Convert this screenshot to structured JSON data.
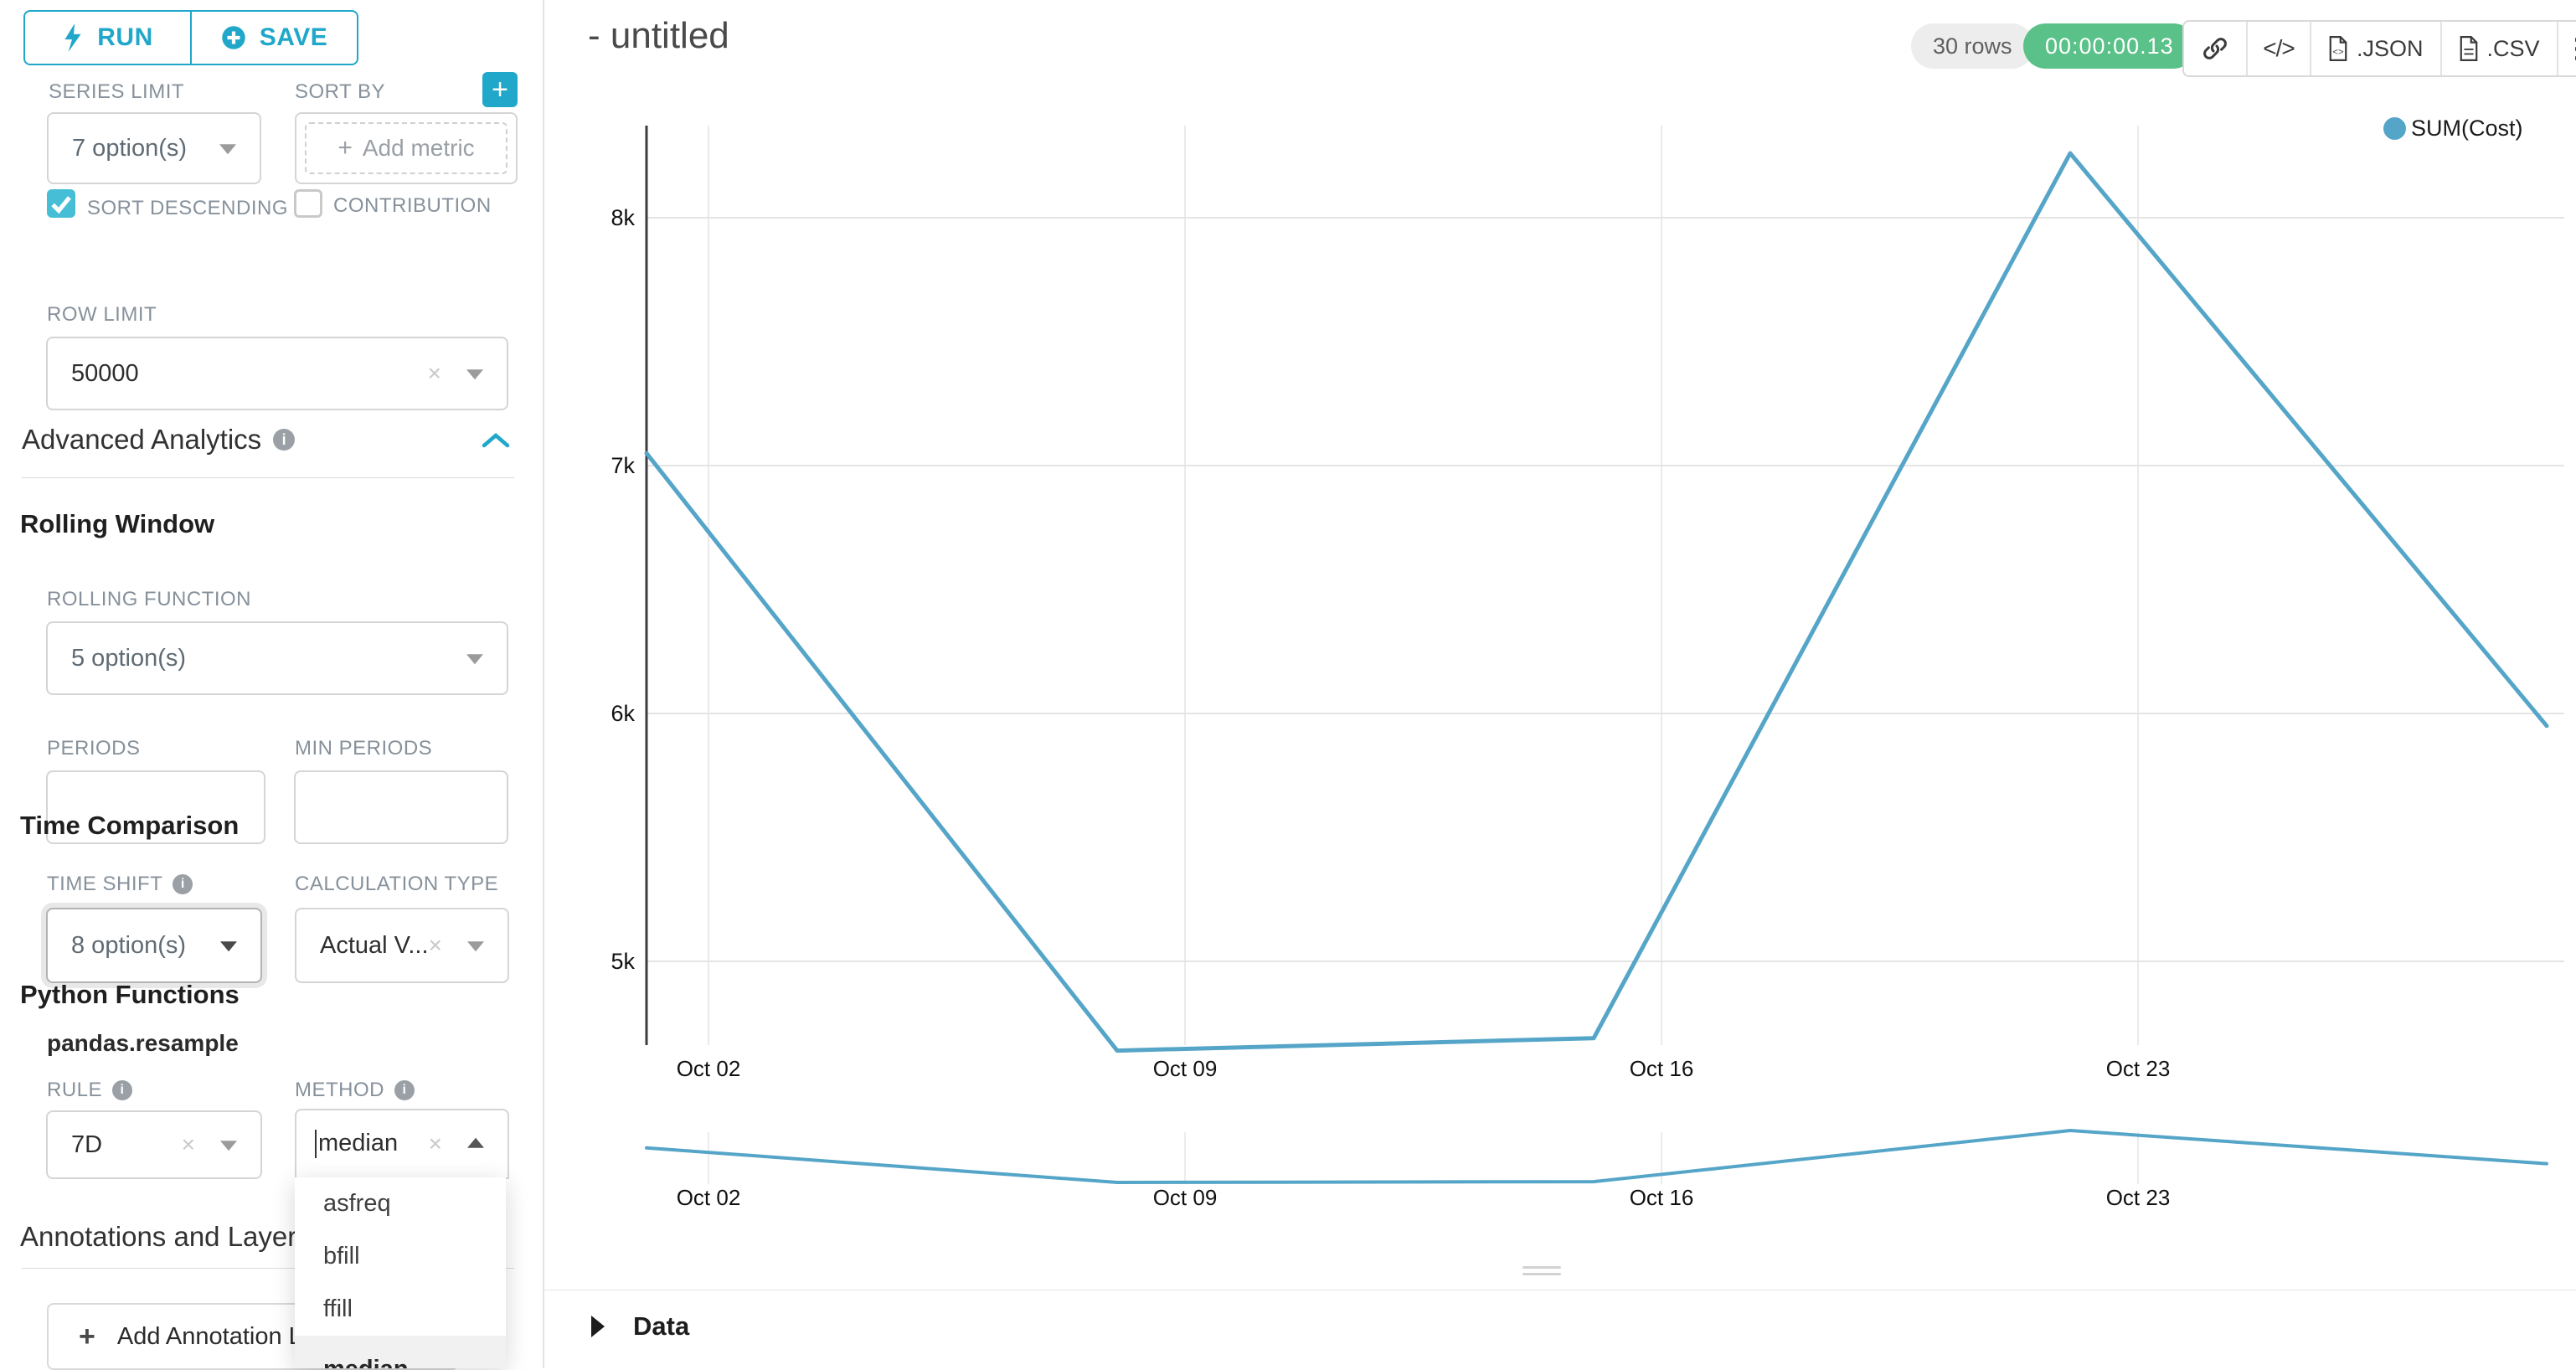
{
  "colors": {
    "accent": "#20a7c9",
    "checkbox_checked": "#45bed6",
    "timer_green": "#5ac189",
    "line_blue": "#55a5c8"
  },
  "sidebar": {
    "run_label": "RUN",
    "save_label": "SAVE",
    "series_limit": {
      "label": "SERIES LIMIT",
      "value": "7 option(s)"
    },
    "sort_by": {
      "label": "SORT BY",
      "placeholder": "Add metric",
      "plus": "+"
    },
    "sort_descending_label": "SORT DESCENDING",
    "contribution_label": "CONTRIBUTION",
    "row_limit": {
      "label": "ROW LIMIT",
      "value": "50000"
    },
    "advanced_analytics_title": "Advanced Analytics",
    "rolling_window": {
      "title": "Rolling Window",
      "rolling_function": {
        "label": "ROLLING FUNCTION",
        "value": "5 option(s)"
      },
      "periods_label": "PERIODS",
      "min_periods_label": "MIN PERIODS"
    },
    "time_comparison": {
      "title": "Time Comparison",
      "time_shift": {
        "label": "TIME SHIFT",
        "value": "8 option(s)"
      },
      "calculation_type": {
        "label": "CALCULATION TYPE",
        "value": "Actual V..."
      }
    },
    "python_functions": {
      "title": "Python Functions",
      "subtitle": "pandas.resample",
      "rule": {
        "label": "RULE",
        "value": "7D"
      },
      "method": {
        "label": "METHOD",
        "value": "median"
      }
    },
    "method_dropdown": {
      "options": [
        "asfreq",
        "bfill",
        "ffill",
        "median"
      ],
      "selected": "median"
    },
    "annotations": {
      "title": "Annotations and Layers",
      "add_button_label": "Add Annotation Layer",
      "plus": "+"
    }
  },
  "header": {
    "title": "- untitled",
    "rows_badge": "30 rows",
    "timer": "00:00:00.13",
    "export_json_label": ".JSON",
    "export_csv_label": ".CSV"
  },
  "legend": {
    "label": "SUM(Cost)"
  },
  "data_panel": {
    "title": "Data"
  },
  "chart_data": {
    "type": "line",
    "title": "",
    "xlabel": "",
    "ylabel": "",
    "legend_entries": [
      "SUM(Cost)"
    ],
    "legend_position": "top-right",
    "grid": true,
    "series": [
      {
        "name": "SUM(Cost)",
        "x": [
          "Oct 01",
          "Oct 08",
          "Oct 15",
          "Oct 22",
          "Oct 29"
        ],
        "values": [
          7050,
          4640,
          4690,
          8260,
          5950
        ]
      }
    ],
    "x_tick_labels": [
      "Oct 02",
      "Oct 09",
      "Oct 16",
      "Oct 23"
    ],
    "y_ticks": [
      5000,
      6000,
      7000,
      8000
    ],
    "y_tick_labels": [
      "5k",
      "6k",
      "7k",
      "8k"
    ],
    "ylim": [
      4450,
      8600
    ],
    "has_mini_preview": true,
    "mini_x_tick_labels": [
      "Oct 02",
      "Oct 09",
      "Oct 16",
      "Oct 23"
    ]
  }
}
